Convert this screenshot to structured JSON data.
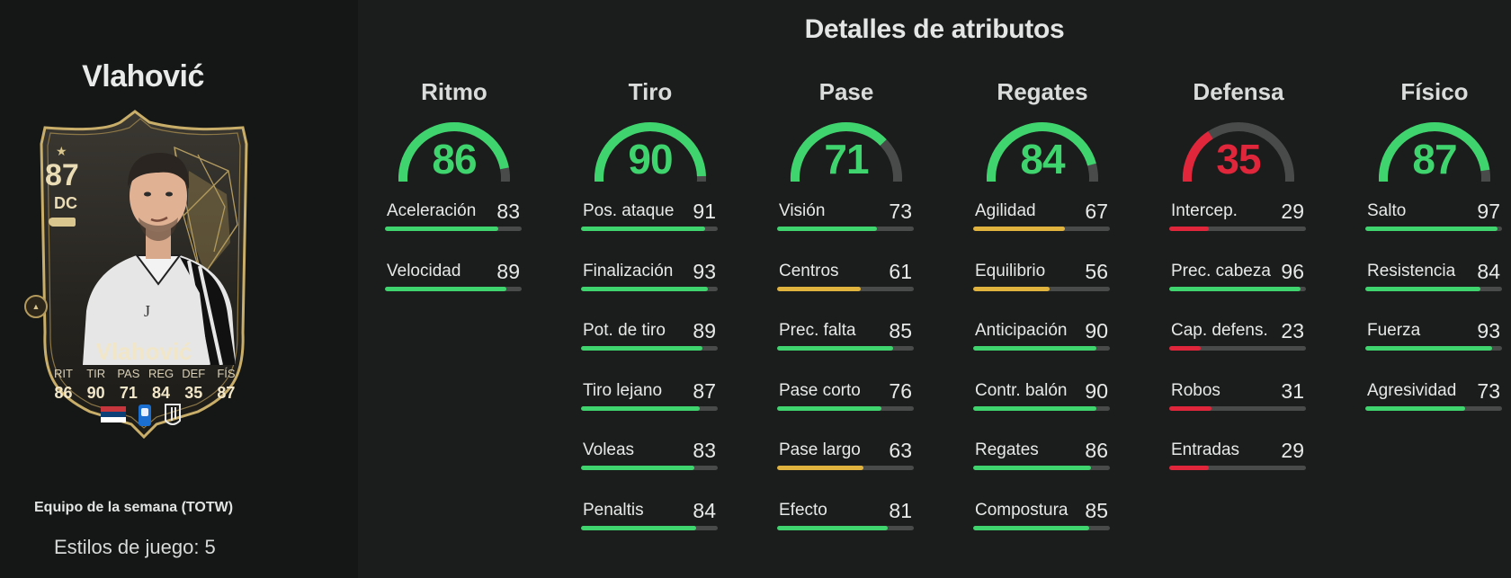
{
  "card": {
    "player_name": "Vlahović",
    "rating": "87",
    "position": "DC",
    "card_name": "Vlahović",
    "stats": [
      {
        "label": "RIT",
        "value": "86"
      },
      {
        "label": "TIR",
        "value": "90"
      },
      {
        "label": "PAS",
        "value": "71"
      },
      {
        "label": "REG",
        "value": "84"
      },
      {
        "label": "DEF",
        "value": "35"
      },
      {
        "label": "FÍS",
        "value": "87"
      }
    ],
    "edition": "Equipo de la semana (TOTW)",
    "playstyles": "Estilos de juego: 5",
    "icons": [
      "star-icon",
      "boot-icon",
      "evolution-badge-icon",
      "serbia-flag-icon",
      "serie-a-logo-icon",
      "juventus-logo-icon"
    ]
  },
  "details_title": "Detalles de atributos",
  "colors": {
    "green": "#3fd46e",
    "yellow": "#e0b23e",
    "red": "#e0263a",
    "track": "#484b4a"
  },
  "groups": [
    {
      "name": "Ritmo",
      "value": "86",
      "color": "#3fd46e",
      "attributes": [
        {
          "name": "Aceleración",
          "value": "83",
          "color": "#3fd46e"
        },
        {
          "name": "Velocidad",
          "value": "89",
          "color": "#3fd46e"
        }
      ]
    },
    {
      "name": "Tiro",
      "value": "90",
      "color": "#3fd46e",
      "attributes": [
        {
          "name": "Pos. ataque",
          "value": "91",
          "color": "#3fd46e"
        },
        {
          "name": "Finalización",
          "value": "93",
          "color": "#3fd46e"
        },
        {
          "name": "Pot. de tiro",
          "value": "89",
          "color": "#3fd46e"
        },
        {
          "name": "Tiro lejano",
          "value": "87",
          "color": "#3fd46e"
        },
        {
          "name": "Voleas",
          "value": "83",
          "color": "#3fd46e"
        },
        {
          "name": "Penaltis",
          "value": "84",
          "color": "#3fd46e"
        }
      ]
    },
    {
      "name": "Pase",
      "value": "71",
      "color": "#3fd46e",
      "attributes": [
        {
          "name": "Visión",
          "value": "73",
          "color": "#3fd46e"
        },
        {
          "name": "Centros",
          "value": "61",
          "color": "#e0b23e"
        },
        {
          "name": "Prec. falta",
          "value": "85",
          "color": "#3fd46e"
        },
        {
          "name": "Pase corto",
          "value": "76",
          "color": "#3fd46e"
        },
        {
          "name": "Pase largo",
          "value": "63",
          "color": "#e0b23e"
        },
        {
          "name": "Efecto",
          "value": "81",
          "color": "#3fd46e"
        }
      ]
    },
    {
      "name": "Regates",
      "value": "84",
      "color": "#3fd46e",
      "attributes": [
        {
          "name": "Agilidad",
          "value": "67",
          "color": "#e0b23e"
        },
        {
          "name": "Equilibrio",
          "value": "56",
          "color": "#e0b23e"
        },
        {
          "name": "Anticipación",
          "value": "90",
          "color": "#3fd46e"
        },
        {
          "name": "Contr. balón",
          "value": "90",
          "color": "#3fd46e"
        },
        {
          "name": "Regates",
          "value": "86",
          "color": "#3fd46e"
        },
        {
          "name": "Compostura",
          "value": "85",
          "color": "#3fd46e"
        }
      ]
    },
    {
      "name": "Defensa",
      "value": "35",
      "color": "#e0263a",
      "attributes": [
        {
          "name": "Intercep.",
          "value": "29",
          "color": "#e0263a"
        },
        {
          "name": "Prec. cabeza",
          "value": "96",
          "color": "#3fd46e"
        },
        {
          "name": "Cap. defens.",
          "value": "23",
          "color": "#e0263a"
        },
        {
          "name": "Robos",
          "value": "31",
          "color": "#e0263a"
        },
        {
          "name": "Entradas",
          "value": "29",
          "color": "#e0263a"
        }
      ]
    },
    {
      "name": "Físico",
      "value": "87",
      "color": "#3fd46e",
      "attributes": [
        {
          "name": "Salto",
          "value": "97",
          "color": "#3fd46e"
        },
        {
          "name": "Resistencia",
          "value": "84",
          "color": "#3fd46e"
        },
        {
          "name": "Fuerza",
          "value": "93",
          "color": "#3fd46e"
        },
        {
          "name": "Agresividad",
          "value": "73",
          "color": "#3fd46e"
        }
      ]
    }
  ]
}
